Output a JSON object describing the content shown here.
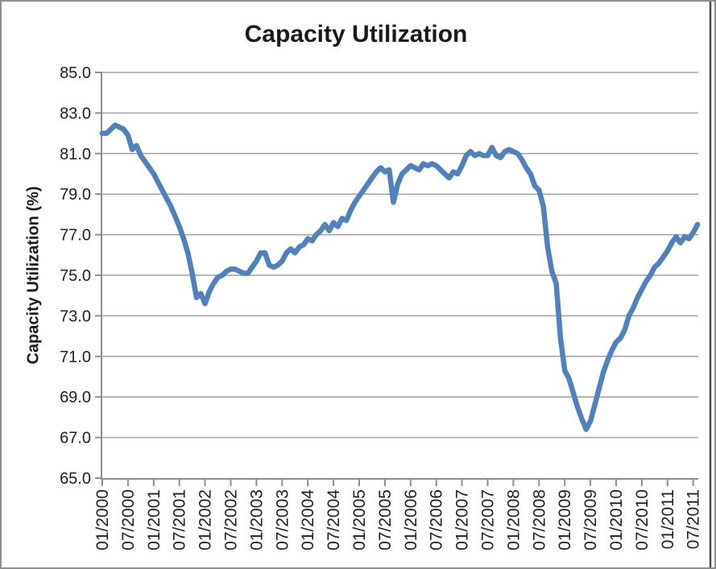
{
  "title": "Capacity Utilization",
  "y_axis": {
    "title": "Capacity Utilization (%)",
    "min": 65.0,
    "max": 85.0,
    "step": 2.0,
    "tick_labels": [
      "85.0",
      "83.0",
      "81.0",
      "79.0",
      "77.0",
      "75.0",
      "73.0",
      "71.0",
      "69.0",
      "67.0",
      "65.0"
    ]
  },
  "x_axis": {
    "tick_labels": [
      "01/2000",
      "07/2000",
      "01/2001",
      "07/2001",
      "01/2002",
      "07/2002",
      "01/2003",
      "07/2003",
      "01/2004",
      "07/2004",
      "01/2005",
      "07/2005",
      "01/2006",
      "07/2006",
      "01/2007",
      "07/2007",
      "01/2008",
      "07/2008",
      "01/2009",
      "07/2009",
      "01/2010",
      "07/2010",
      "01/2011",
      "07/2011"
    ],
    "ticks_every_n_months": 6
  },
  "colors": {
    "line": "#4f81bd",
    "gridline": "#a0a0a0",
    "axis": "#8e8e8e",
    "text": "#1f1f1f",
    "frame": "#8f8f8f",
    "window_edge": "#4a4a4a",
    "background": "#ffffff"
  },
  "chart_data": {
    "type": "line",
    "title": "Capacity Utilization",
    "xlabel": "",
    "ylabel": "Capacity Utilization (%)",
    "ylim": [
      65.0,
      85.0
    ],
    "grid": "horizontal-only",
    "legend": "none",
    "x_start_month": "01/2000",
    "x_interval": "monthly",
    "n_points": 140,
    "series": [
      {
        "name": "Capacity Utilization (%)",
        "values": [
          82.0,
          82.0,
          82.2,
          82.4,
          82.3,
          82.2,
          81.9,
          81.2,
          81.4,
          80.9,
          80.6,
          80.3,
          80.0,
          79.6,
          79.2,
          78.8,
          78.4,
          77.9,
          77.4,
          76.8,
          76.1,
          75.1,
          73.9,
          74.1,
          73.6,
          74.2,
          74.6,
          74.9,
          75.0,
          75.2,
          75.3,
          75.3,
          75.2,
          75.1,
          75.1,
          75.4,
          75.7,
          76.1,
          76.1,
          75.5,
          75.4,
          75.5,
          75.7,
          76.1,
          76.3,
          76.1,
          76.4,
          76.5,
          76.8,
          76.7,
          77.0,
          77.2,
          77.5,
          77.2,
          77.6,
          77.4,
          77.8,
          77.7,
          78.2,
          78.6,
          78.9,
          79.2,
          79.5,
          79.8,
          80.1,
          80.3,
          80.1,
          80.2,
          78.6,
          79.5,
          80.0,
          80.2,
          80.4,
          80.3,
          80.2,
          80.5,
          80.4,
          80.5,
          80.4,
          80.2,
          80.0,
          79.8,
          80.1,
          80.0,
          80.4,
          80.9,
          81.1,
          80.9,
          81.0,
          80.9,
          80.9,
          81.3,
          80.9,
          80.8,
          81.1,
          81.2,
          81.1,
          81.0,
          80.7,
          80.3,
          80.0,
          79.4,
          79.2,
          78.4,
          76.4,
          75.2,
          74.6,
          71.9,
          70.3,
          69.9,
          69.2,
          68.5,
          67.9,
          67.4,
          67.8,
          68.6,
          69.4,
          70.2,
          70.8,
          71.3,
          71.7,
          71.9,
          72.3,
          73.0,
          73.4,
          73.9,
          74.3,
          74.7,
          75.0,
          75.4,
          75.6,
          75.9,
          76.2,
          76.6,
          76.9,
          76.6,
          76.9,
          76.8,
          77.1,
          77.5
        ]
      }
    ]
  }
}
